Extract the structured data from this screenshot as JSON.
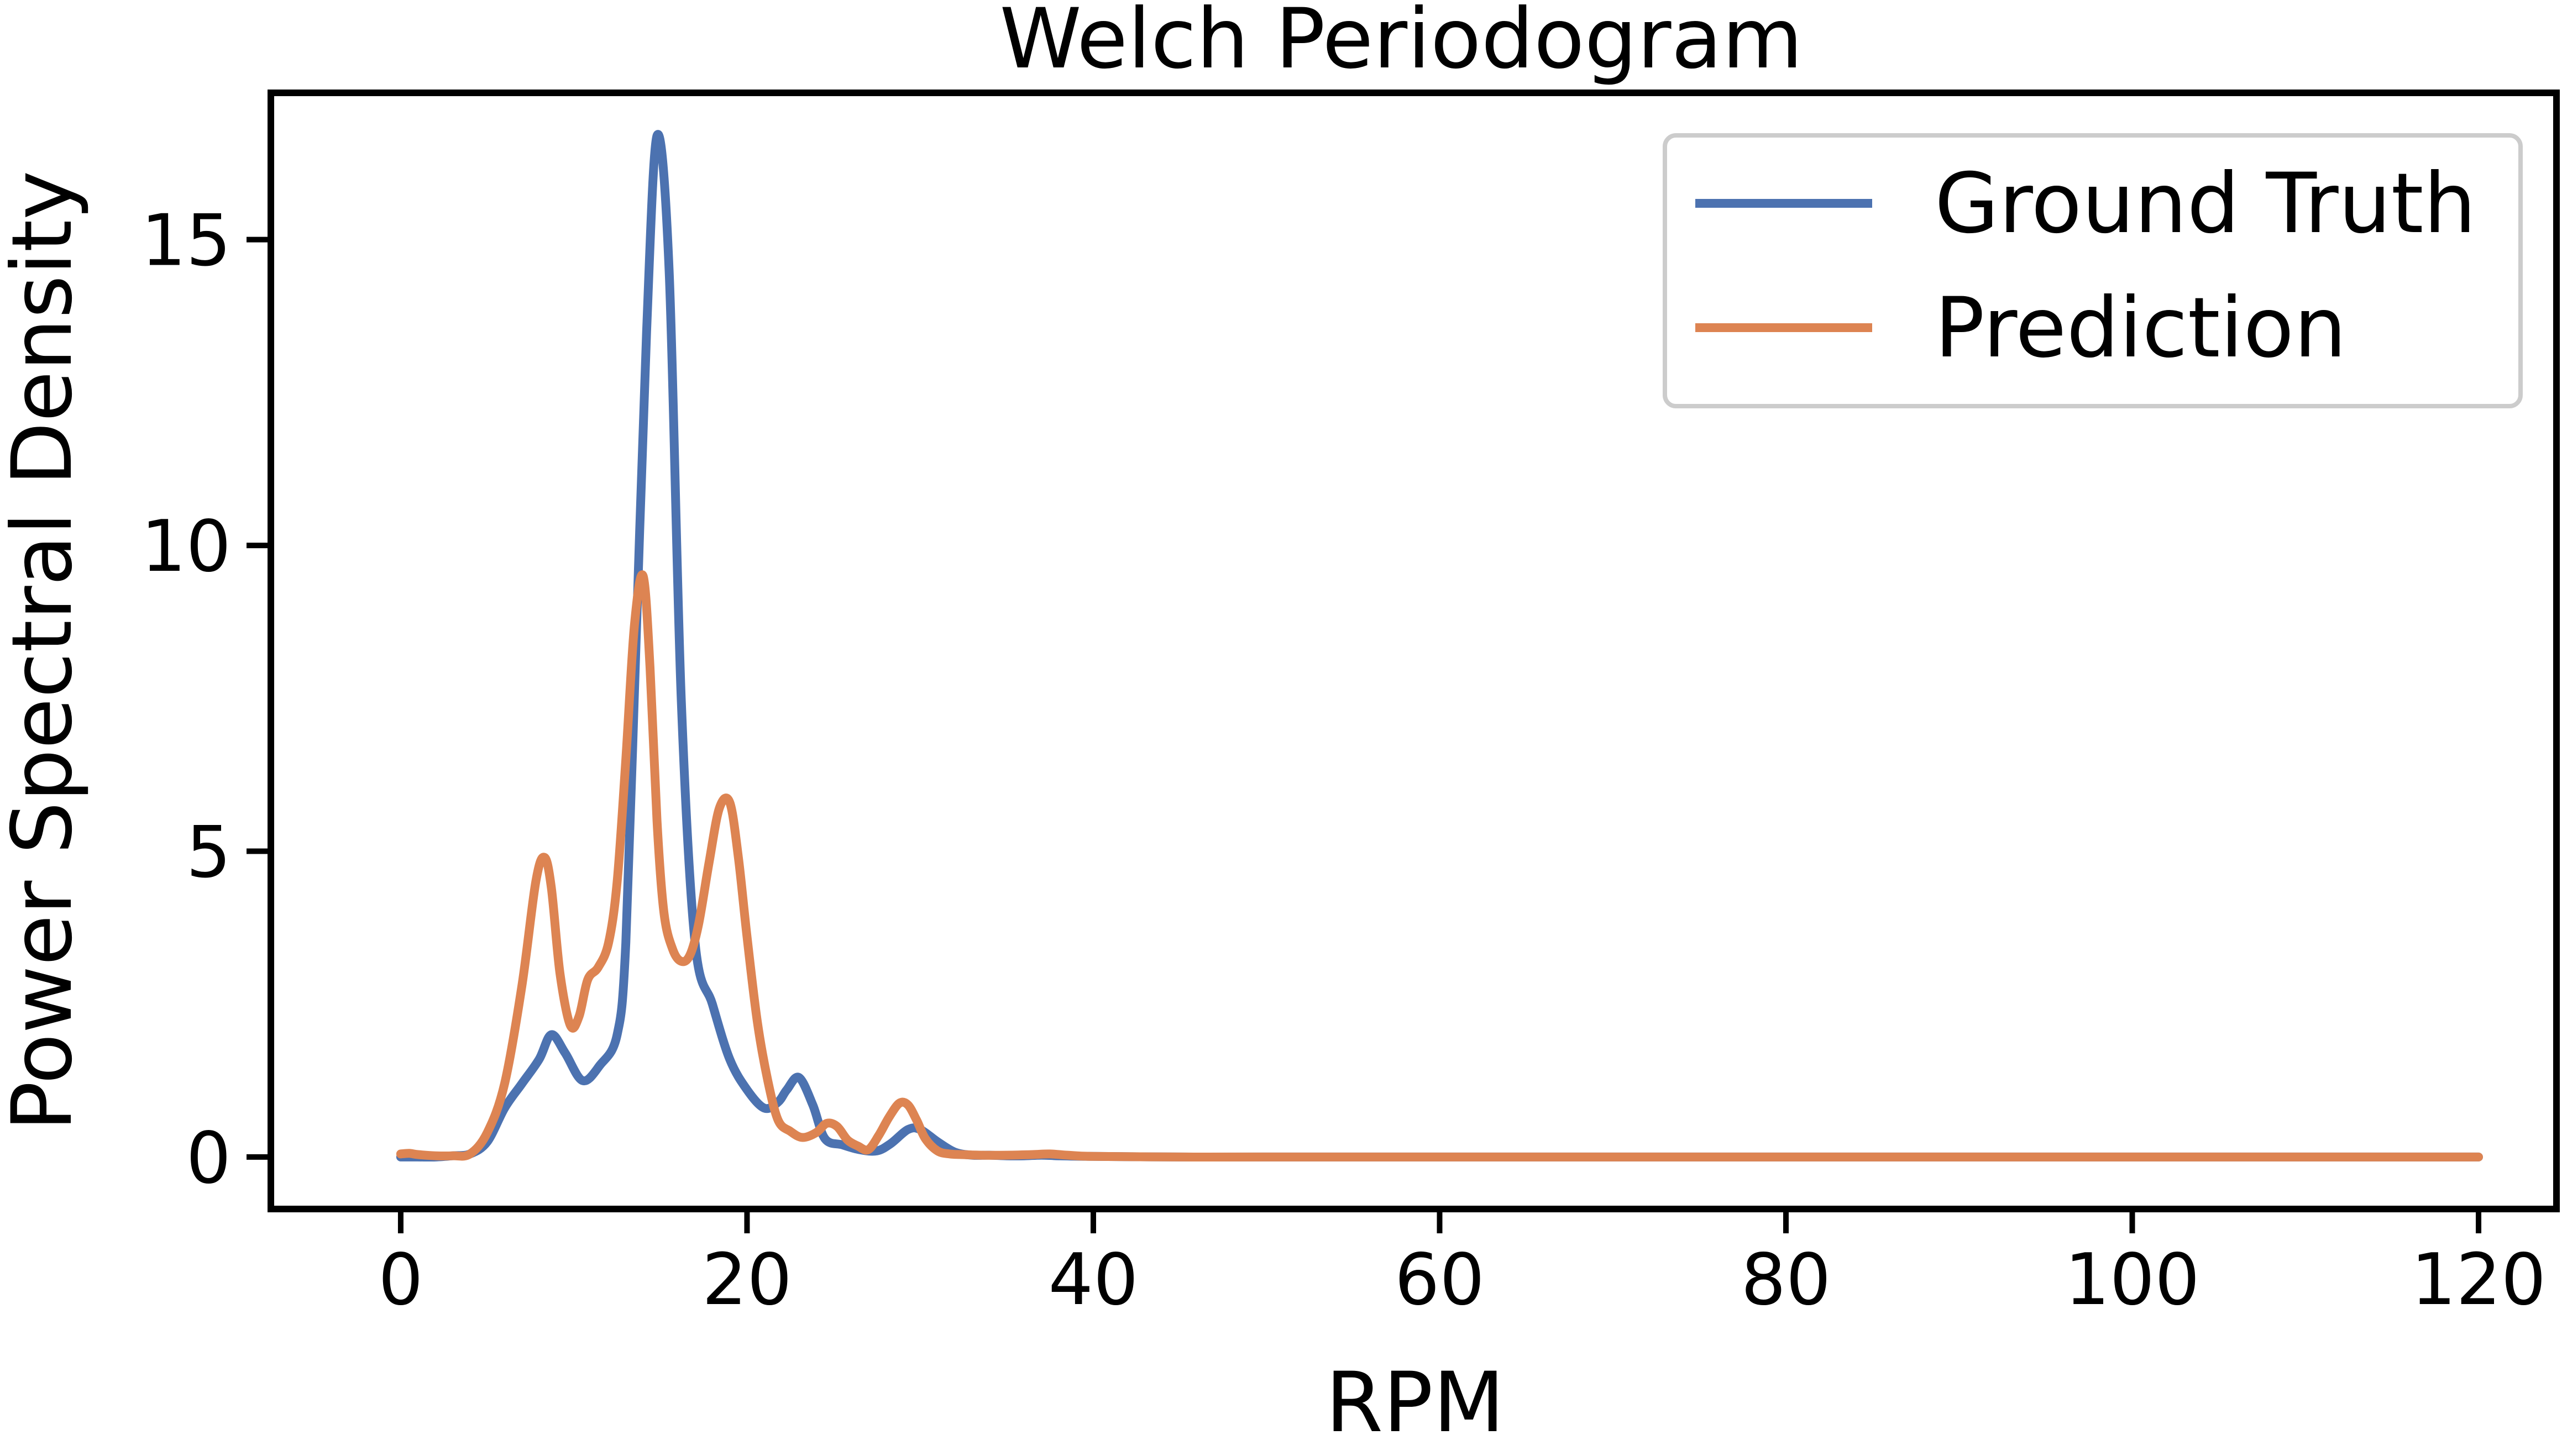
{
  "chart_data": {
    "type": "line",
    "title": "Welch Periodogram",
    "xlabel": "RPM",
    "ylabel": "Power Spectral Density",
    "xlim": [
      -7.5,
      124.5
    ],
    "ylim": [
      -0.85,
      17.4
    ],
    "xticks": [
      0,
      20,
      40,
      60,
      80,
      100,
      120
    ],
    "xtick_labels": [
      "0",
      "20",
      "40",
      "60",
      "80",
      "100",
      "120"
    ],
    "yticks": [
      0,
      5,
      10,
      15
    ],
    "ytick_labels": [
      "0",
      "5",
      "10",
      "15"
    ],
    "grid": false,
    "legend_position": "top-right",
    "series": [
      {
        "name": "Ground Truth",
        "color": "#4c72b0",
        "x": [
          0,
          1,
          2,
          3,
          4,
          5,
          6,
          7,
          8,
          8.7,
          9.5,
          10.5,
          11.5,
          12.5,
          13,
          13.6,
          14.2,
          14.8,
          15.5,
          16.2,
          17,
          18,
          19,
          20,
          21,
          21.8,
          22.3,
          23,
          23.8,
          24.5,
          25.5,
          26.5,
          27.5,
          28.3,
          29.3,
          30,
          31,
          32,
          33,
          34,
          35,
          36,
          37,
          38,
          40,
          45,
          50,
          60,
          70,
          80,
          90,
          100,
          110,
          120
        ],
        "y": [
          0,
          0,
          0,
          0.02,
          0.05,
          0.25,
          0.8,
          1.2,
          1.6,
          2.0,
          1.7,
          1.25,
          1.5,
          2.0,
          3.5,
          8.5,
          13.5,
          16.7,
          14.5,
          7.5,
          3.5,
          2.5,
          1.6,
          1.1,
          0.8,
          0.9,
          1.1,
          1.3,
          0.85,
          0.3,
          0.2,
          0.12,
          0.1,
          0.22,
          0.45,
          0.45,
          0.25,
          0.08,
          0.03,
          0.03,
          0.02,
          0.02,
          0.03,
          0.02,
          0.01,
          0,
          0,
          0,
          0,
          0,
          0,
          0,
          0,
          0
        ]
      },
      {
        "name": "Prediction",
        "color": "#dd8452",
        "x": [
          0,
          0.5,
          1,
          2,
          3,
          4,
          5,
          6,
          7,
          7.8,
          8.3,
          8.7,
          9.2,
          9.8,
          10.3,
          10.8,
          11.4,
          12,
          12.5,
          13,
          13.5,
          14,
          14.4,
          14.8,
          15.2,
          15.7,
          16.2,
          16.7,
          17.2,
          17.8,
          18.4,
          19,
          19.5,
          20,
          20.6,
          21.2,
          21.8,
          22.5,
          23.2,
          24,
          24.6,
          25.2,
          25.8,
          26.4,
          27,
          27.6,
          28.2,
          28.8,
          29.3,
          29.8,
          30.3,
          31,
          31.7,
          32.4,
          33.5,
          35,
          36.5,
          37.5,
          38.5,
          40,
          45,
          50,
          60,
          70,
          80,
          90,
          100,
          110,
          120
        ],
        "y": [
          0.05,
          0.06,
          0.04,
          0.02,
          0.02,
          0.05,
          0.4,
          1.2,
          2.8,
          4.5,
          4.9,
          4.4,
          3.0,
          2.15,
          2.3,
          2.9,
          3.1,
          3.5,
          4.5,
          6.5,
          8.7,
          9.5,
          8.0,
          5.5,
          4.0,
          3.4,
          3.2,
          3.3,
          3.8,
          4.8,
          5.7,
          5.8,
          4.9,
          3.6,
          2.2,
          1.25,
          0.6,
          0.42,
          0.32,
          0.4,
          0.55,
          0.5,
          0.28,
          0.18,
          0.12,
          0.35,
          0.65,
          0.88,
          0.85,
          0.6,
          0.3,
          0.1,
          0.05,
          0.04,
          0.03,
          0.03,
          0.04,
          0.05,
          0.03,
          0.01,
          0,
          0,
          0,
          0,
          0,
          0,
          0,
          0,
          0
        ]
      }
    ]
  }
}
